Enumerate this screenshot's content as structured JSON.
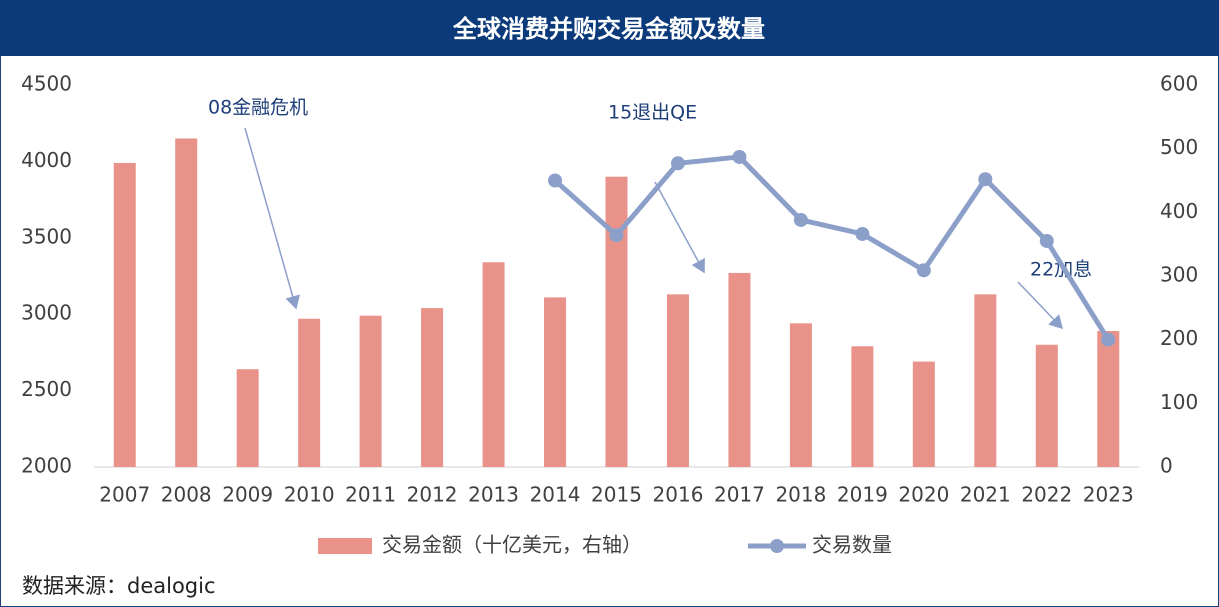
{
  "chart_data": {
    "type": "bar-line",
    "title": "全球消费并购交易金额及数量",
    "categories": [
      "2007",
      "2008",
      "2009",
      "2010",
      "2011",
      "2012",
      "2013",
      "2014",
      "2015",
      "2016",
      "2017",
      "2018",
      "2019",
      "2020",
      "2021",
      "2022",
      "2023"
    ],
    "series": [
      {
        "name": "交易金额（十亿美元，右轴）",
        "type": "bar",
        "color": "#e8928a",
        "values": [
          3990,
          4150,
          2640,
          2970,
          2990,
          3040,
          3340,
          3110,
          3900,
          3130,
          3270,
          2940,
          2790,
          2690,
          3130,
          2800,
          2890
        ]
      },
      {
        "name": "交易数量",
        "type": "line",
        "axis": "y2",
        "color": "#8c9fc9",
        "values": [
          null,
          null,
          null,
          null,
          null,
          null,
          null,
          450,
          364,
          477,
          487,
          388,
          366,
          309,
          452,
          355,
          200
        ]
      }
    ],
    "ylim": [
      2000,
      4500
    ],
    "yticks": [
      2000,
      2500,
      3000,
      3500,
      4000,
      4500
    ],
    "y2lim": [
      0,
      600
    ],
    "y2ticks": [
      0,
      100,
      200,
      300,
      400,
      500,
      600
    ],
    "annotations": [
      "08金融危机",
      "15退出QE",
      "22加息"
    ],
    "source": "数据来源：dealogic",
    "grid": false,
    "legend": "bottom"
  }
}
